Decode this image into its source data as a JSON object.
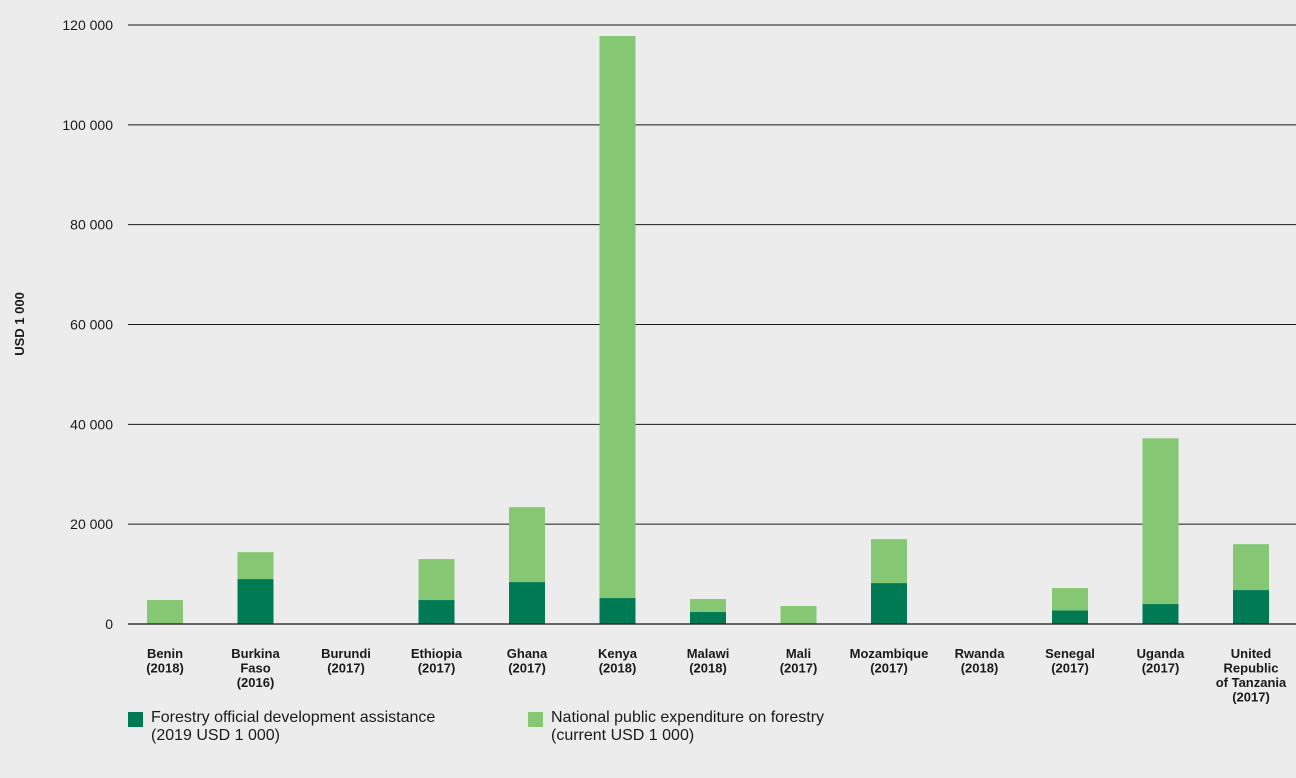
{
  "chart_data": {
    "type": "bar",
    "stacked": true,
    "title": "",
    "xlabel": "",
    "ylabel": "USD 1 000",
    "ylim": [
      0,
      120000
    ],
    "yticks": [
      0,
      20000,
      40000,
      60000,
      80000,
      100000,
      120000
    ],
    "ytick_labels": [
      "0",
      "20 000",
      "40 000",
      "60 000",
      "80 000",
      "100 000",
      "120 000"
    ],
    "grid": true,
    "legend_position": "bottom-left",
    "categories": [
      "Benin\n(2018)",
      "Burkina\nFaso\n(2016)",
      "Burundi\n(2017)",
      "Ethiopia\n(2017)",
      "Ghana\n(2017)",
      "Kenya\n(2018)",
      "Malawi\n(2018)",
      "Mali\n(2017)",
      "Mozambique\n(2017)",
      "Rwanda\n(2018)",
      "Senegal\n(2017)",
      "Uganda\n(2017)",
      "United\nRepublic\nof Tanzania\n(2017)"
    ],
    "series": [
      {
        "name": "Forestry official development assistance\n(2019 USD 1 000)",
        "color": "#007a53",
        "values": [
          0,
          9000,
          0,
          4800,
          8400,
          5200,
          2400,
          0,
          8200,
          0,
          2700,
          4000,
          6800
        ]
      },
      {
        "name": "National public expenditure on forestry\n(current USD 1 000)",
        "color": "#86c774",
        "values": [
          4800,
          5400,
          0,
          8200,
          15000,
          112600,
          2600,
          3600,
          8800,
          0,
          4500,
          33200,
          9200
        ]
      }
    ]
  }
}
